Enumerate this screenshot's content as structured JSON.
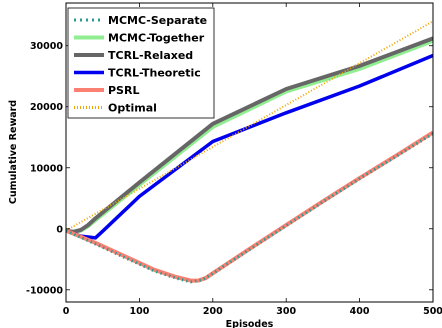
{
  "chart_data": {
    "type": "line",
    "title": "",
    "xlabel": "Episodes",
    "ylabel": "Cumulative Reward",
    "xlim": [
      0,
      500
    ],
    "ylim": [
      -12000,
      37000
    ],
    "xticks": [
      0,
      100,
      200,
      300,
      400,
      500
    ],
    "yticks": [
      -10000,
      0,
      10000,
      20000,
      30000
    ],
    "grid": false,
    "legend_position": "top-left",
    "series": [
      {
        "name": "MCMC-Separate",
        "color": "#2a9d8f",
        "style": "dotted",
        "x": [
          0,
          20,
          40,
          80,
          120,
          150,
          170,
          185,
          200,
          250,
          300,
          350,
          400,
          450,
          500
        ],
        "y": [
          -300,
          -1400,
          -2500,
          -4700,
          -6900,
          -8100,
          -8700,
          -8400,
          -7300,
          -3400,
          500,
          4400,
          8200,
          11900,
          15600
        ]
      },
      {
        "name": "MCMC-Together",
        "color": "#90ee90",
        "style": "solid",
        "x": [
          0,
          10,
          20,
          30,
          40,
          100,
          200,
          300,
          400,
          500
        ],
        "y": [
          -300,
          -500,
          -300,
          400,
          1400,
          7200,
          16700,
          22500,
          26200,
          30800
        ]
      },
      {
        "name": "TCRL-Relaxed",
        "color": "#666666",
        "style": "solid",
        "x": [
          0,
          10,
          20,
          30,
          40,
          100,
          200,
          300,
          400,
          500
        ],
        "y": [
          -300,
          -500,
          -200,
          600,
          1700,
          7600,
          17200,
          22900,
          26700,
          31200
        ]
      },
      {
        "name": "TCRL-Theoretic",
        "color": "#0000ee",
        "style": "solid",
        "x": [
          0,
          20,
          40,
          50,
          100,
          200,
          300,
          400,
          500
        ],
        "y": [
          -300,
          -1200,
          -1500,
          -400,
          5300,
          14300,
          19000,
          23400,
          28400
        ]
      },
      {
        "name": "PSRL",
        "color": "#fa8072",
        "style": "solid",
        "x": [
          0,
          20,
          40,
          80,
          120,
          150,
          170,
          180,
          190,
          200,
          250,
          300,
          350,
          400,
          450,
          500
        ],
        "y": [
          -300,
          -1300,
          -2300,
          -4500,
          -6700,
          -7900,
          -8500,
          -8500,
          -8100,
          -7300,
          -3300,
          600,
          4500,
          8300,
          12000,
          15800
        ]
      },
      {
        "name": "Optimal",
        "color": "#f0a500",
        "style": "dotted",
        "x": [
          0,
          500
        ],
        "y": [
          -300,
          34000
        ]
      }
    ]
  }
}
